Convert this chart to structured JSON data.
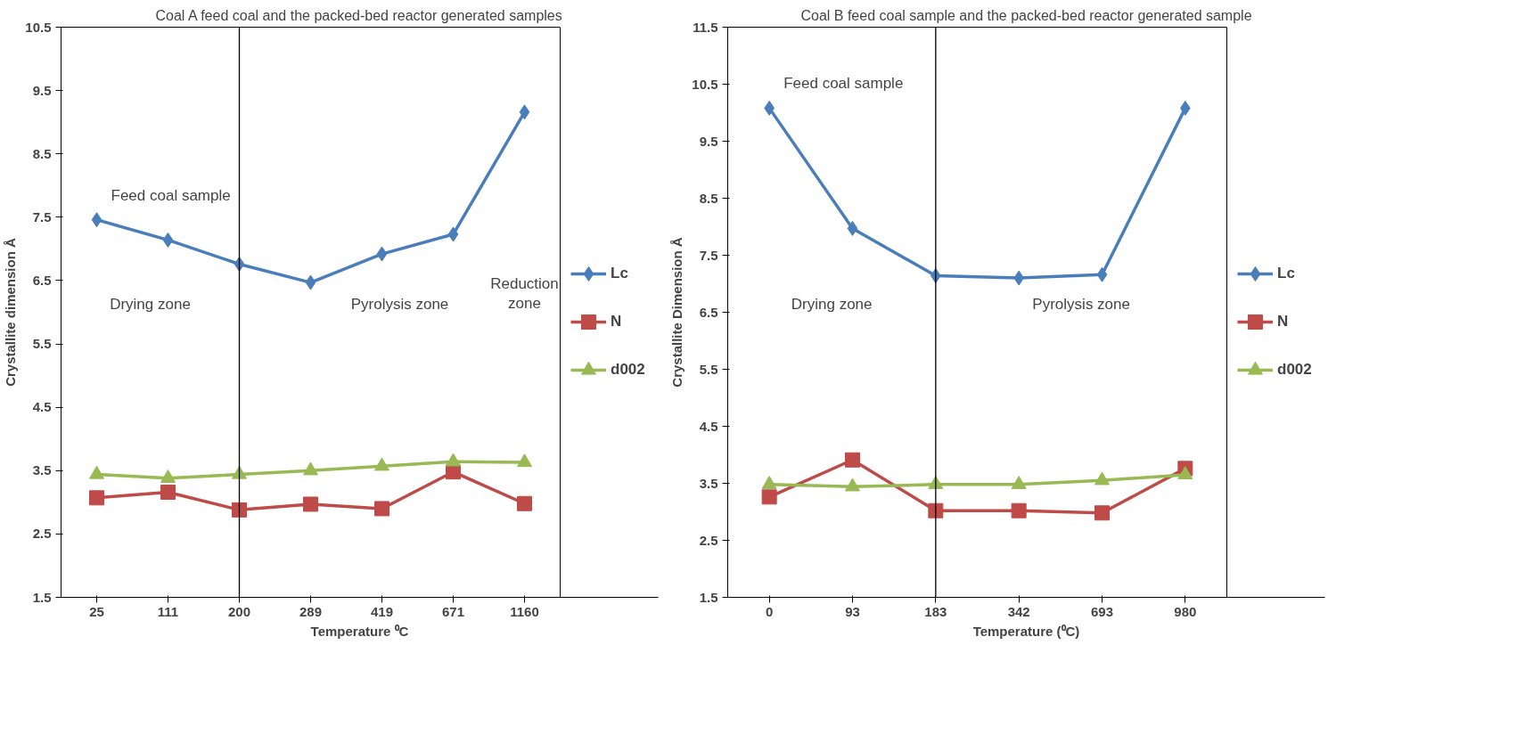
{
  "chart_data": [
    {
      "type": "line",
      "title": "Coal A feed coal and the packed-bed reactor generated samples",
      "xlabel": "Temperature ⁰C",
      "ylabel": "Crystallite dimension Å",
      "categories": [
        "25",
        "111",
        "200",
        "289",
        "419",
        "671",
        "1160"
      ],
      "ylim": [
        1.5,
        10.5
      ],
      "yticks": [
        1.5,
        2.5,
        3.5,
        4.5,
        5.5,
        6.5,
        7.5,
        8.5,
        9.5,
        10.5
      ],
      "legend": "right",
      "series": [
        {
          "name": "Lc",
          "color": "#4a7ebb",
          "marker": "diamond",
          "values": [
            7.46,
            7.14,
            6.76,
            6.47,
            6.92,
            7.23,
            9.16
          ]
        },
        {
          "name": "N",
          "color": "#be4b48",
          "marker": "square",
          "values": [
            3.07,
            3.16,
            2.88,
            2.97,
            2.9,
            3.48,
            2.98
          ]
        },
        {
          "name": "d002",
          "color": "#98b954",
          "marker": "triangle",
          "values": [
            3.44,
            3.38,
            3.44,
            3.5,
            3.57,
            3.64,
            3.63
          ]
        }
      ],
      "ref_lines": [
        {
          "axis": "x",
          "value": "200",
          "color": "#000000"
        }
      ],
      "annotations": [
        {
          "text": "Feed coal sample",
          "x": "25",
          "y": 7.46
        },
        "Drying zone",
        "Pyrolysis zone",
        "Reduction zone"
      ]
    },
    {
      "type": "line",
      "title": "Coal B feed coal sample and the packed-bed reactor generated sample",
      "xlabel": "Temperature (⁰C)",
      "ylabel": "Crystallite Dimension Å",
      "categories": [
        "0",
        "93",
        "183",
        "342",
        "693",
        "980"
      ],
      "ylim": [
        1.5,
        11.5
      ],
      "yticks": [
        1.5,
        2.5,
        3.5,
        4.5,
        5.5,
        6.5,
        7.5,
        8.5,
        9.5,
        10.5,
        11.5
      ],
      "legend": "right",
      "series": [
        {
          "name": "Lc",
          "color": "#4a7ebb",
          "marker": "diamond",
          "values": [
            10.08,
            7.97,
            7.14,
            7.1,
            7.16,
            10.08
          ]
        },
        {
          "name": "N",
          "color": "#be4b48",
          "marker": "square",
          "values": [
            3.26,
            3.91,
            3.02,
            3.02,
            2.98,
            3.76
          ]
        },
        {
          "name": "d002",
          "color": "#98b954",
          "marker": "triangle",
          "values": [
            3.48,
            3.44,
            3.48,
            3.48,
            3.55,
            3.65
          ]
        }
      ],
      "ref_lines": [
        {
          "axis": "x",
          "value": "183",
          "color": "#000000"
        }
      ],
      "annotations": [
        {
          "text": "Feed coal sample",
          "x": "0",
          "y": 10.08
        },
        "Drying zone",
        "Pyrolysis zone"
      ]
    }
  ]
}
